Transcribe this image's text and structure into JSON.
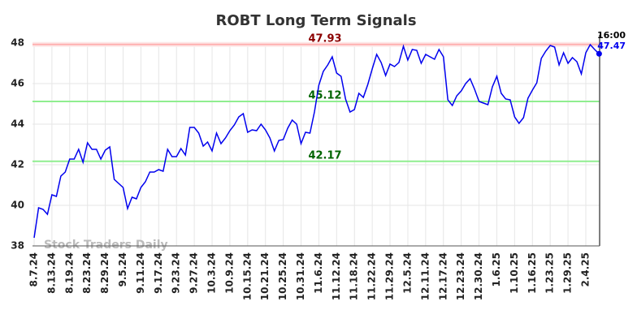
{
  "chart_data": {
    "type": "line",
    "title": "ROBT Long Term Signals",
    "categories": [
      "8.7.24",
      null,
      null,
      null,
      "8.13.24",
      null,
      null,
      null,
      "8.19.24",
      null,
      null,
      null,
      "8.23.24",
      null,
      null,
      null,
      "8.29.24",
      null,
      null,
      null,
      "9.5.24",
      null,
      null,
      null,
      "9.11.24",
      null,
      null,
      null,
      "9.17.24",
      null,
      null,
      null,
      "9.23.24",
      null,
      null,
      null,
      "9.27.24",
      null,
      null,
      null,
      "10.3.24",
      null,
      null,
      null,
      "10.9.24",
      null,
      null,
      null,
      "10.15.24",
      null,
      null,
      null,
      "10.21.24",
      null,
      null,
      null,
      "10.25.24",
      null,
      null,
      null,
      "10.31.24",
      null,
      null,
      null,
      "11.6.24",
      null,
      null,
      null,
      "11.12.24",
      null,
      null,
      null,
      "11.18.24",
      null,
      null,
      null,
      "11.22.24",
      null,
      null,
      null,
      "11.29.24",
      null,
      null,
      null,
      "12.5.24",
      null,
      null,
      null,
      "12.11.24",
      null,
      null,
      null,
      "12.17.24",
      null,
      null,
      null,
      "12.23.24",
      null,
      null,
      null,
      "12.30.24",
      null,
      null,
      null,
      "1.6.25",
      null,
      null,
      null,
      "1.10.25",
      null,
      null,
      null,
      "1.16.25",
      null,
      null,
      null,
      "1.23.25",
      null,
      null,
      null,
      "1.29.25",
      null,
      null,
      null,
      "2.4.25",
      null,
      null,
      null
    ],
    "color": "#0000ee",
    "values": [
      38.4,
      39.88,
      39.8,
      39.56,
      40.52,
      40.44,
      41.44,
      41.64,
      42.28,
      42.28,
      42.76,
      42.12,
      43.08,
      42.76,
      42.76,
      42.28,
      42.72,
      42.88,
      41.28,
      41.08,
      40.88,
      39.84,
      40.4,
      40.32,
      40.88,
      41.16,
      41.64,
      41.64,
      41.76,
      41.68,
      42.76,
      42.4,
      42.4,
      42.8,
      42.48,
      43.84,
      43.84,
      43.56,
      42.92,
      43.12,
      42.68,
      43.56,
      43.04,
      43.32,
      43.68,
      43.96,
      44.36,
      44.52,
      43.6,
      43.72,
      43.68,
      44.0,
      43.72,
      43.32,
      42.68,
      43.2,
      43.24,
      43.8,
      44.2,
      44.0,
      43.04,
      43.6,
      43.56,
      44.6,
      45.92,
      46.6,
      46.92,
      47.32,
      46.52,
      46.36,
      45.24,
      44.6,
      44.72,
      45.52,
      45.32,
      45.96,
      46.72,
      47.44,
      47.04,
      46.4,
      46.96,
      46.84,
      47.04,
      47.84,
      47.16,
      47.68,
      47.64,
      47.0,
      47.44,
      47.32,
      47.2,
      47.68,
      47.32,
      45.2,
      44.92,
      45.4,
      45.64,
      46.0,
      46.24,
      45.72,
      45.12,
      45.04,
      44.96,
      45.84,
      46.36,
      45.52,
      45.24,
      45.2,
      44.36,
      44.04,
      44.32,
      45.28,
      45.68,
      46.04,
      47.24,
      47.6,
      47.88,
      47.8,
      46.92,
      47.52,
      47.0,
      47.28,
      47.08,
      46.48,
      47.52,
      47.92,
      47.68,
      47.47
    ],
    "last_time": "16:00",
    "reference_lines": [
      {
        "value": 47.93,
        "color": "#ffb0b0",
        "label_color": "#8b0000"
      },
      {
        "value": 45.12,
        "color": "#90ee90",
        "label_color": "#006400"
      },
      {
        "value": 42.17,
        "color": "#90ee90",
        "label_color": "#006400"
      }
    ],
    "watermark": "Stock Traders Daily",
    "ylim": [
      38,
      48
    ],
    "yticks": [
      38,
      40,
      42,
      44,
      46,
      48
    ],
    "grid": true
  }
}
